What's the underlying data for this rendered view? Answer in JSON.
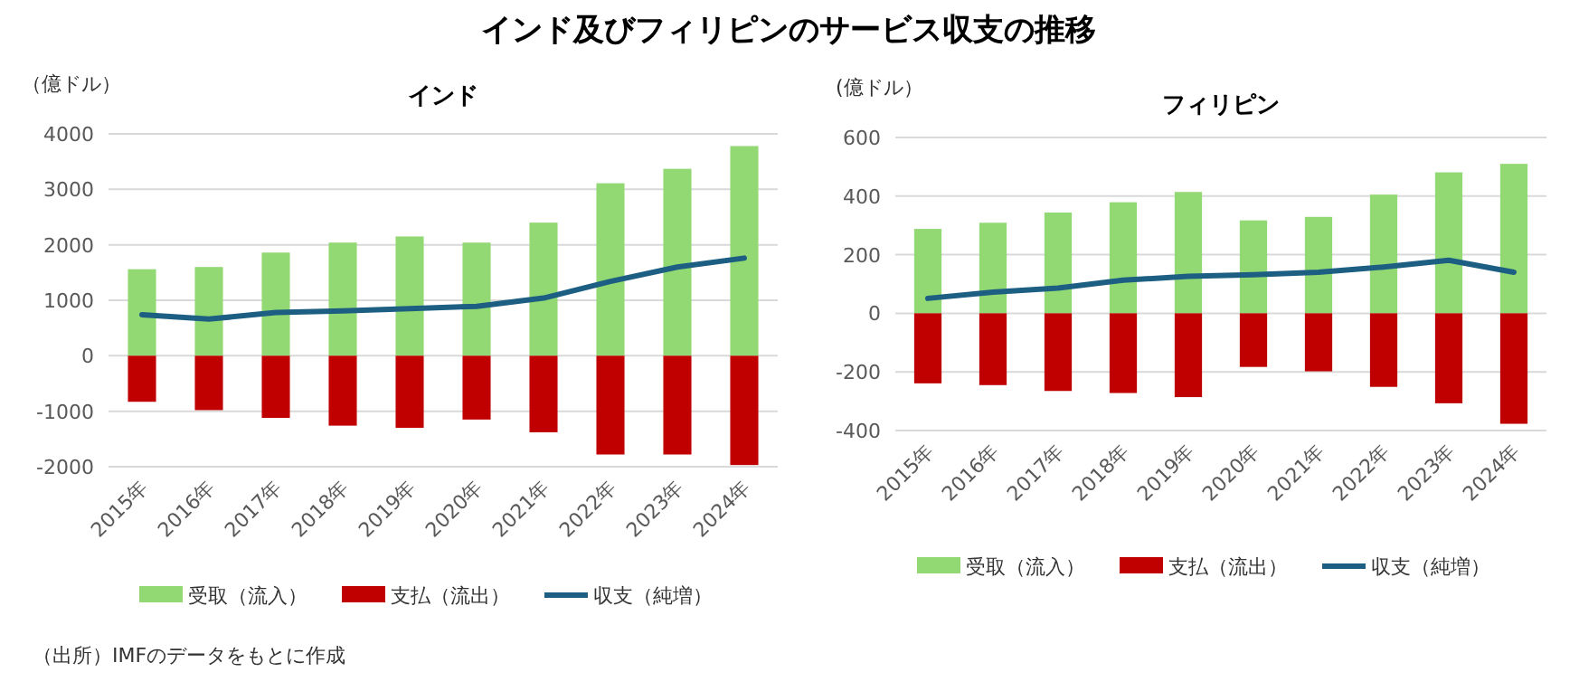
{
  "chart_data": [
    {
      "type": "bar",
      "title": "インド及びフィリピンのサービス収支の推移",
      "subtitle": "インド",
      "ylabel": "（億ドル）",
      "stacked": true,
      "grid": "y",
      "legend": "bottom",
      "categories": [
        "2015年",
        "2016年",
        "2017年",
        "2018年",
        "2019年",
        "2020年",
        "2021年",
        "2022年",
        "2023年",
        "2024年"
      ],
      "ylim": [
        -2000,
        4000
      ],
      "yticks": [
        -2000,
        -1000,
        0,
        1000,
        2000,
        3000,
        4000
      ],
      "series": [
        {
          "name": "受取（流入）",
          "color": "#92d873",
          "values": [
            1560,
            1600,
            1860,
            2040,
            2150,
            2040,
            2400,
            3110,
            3370,
            3780
          ]
        },
        {
          "name": "支払（流出）",
          "color": "#c00000",
          "values": [
            -830,
            -980,
            -1120,
            -1260,
            -1300,
            -1150,
            -1380,
            -1780,
            -1780,
            -1970
          ]
        },
        {
          "name": "収支（純増）",
          "type": "line",
          "color": "#1d5f82",
          "values": [
            740,
            660,
            780,
            810,
            850,
            890,
            1040,
            1340,
            1600,
            1760
          ]
        }
      ],
      "annotations": [
        "（出所）IMFのデータをもとに作成"
      ]
    },
    {
      "type": "bar",
      "title": "フィリピン",
      "ylabel": "(億ドル）",
      "stacked": true,
      "grid": "y",
      "legend": "bottom",
      "categories": [
        "2015年",
        "2016年",
        "2017年",
        "2018年",
        "2019年",
        "2020年",
        "2021年",
        "2022年",
        "2023年",
        "2024年"
      ],
      "ylim": [
        -400,
        600
      ],
      "yticks": [
        -400,
        -200,
        0,
        200,
        400,
        600
      ],
      "series": [
        {
          "name": "受取（流入）",
          "color": "#92d873",
          "values": [
            288,
            309,
            344,
            379,
            414,
            317,
            329,
            405,
            481,
            510
          ]
        },
        {
          "name": "支払（流出）",
          "color": "#c00000",
          "values": [
            -239,
            -245,
            -265,
            -272,
            -286,
            -183,
            -198,
            -251,
            -307,
            -377
          ]
        },
        {
          "name": "収支（純増）",
          "type": "line",
          "color": "#1d5f82",
          "values": [
            51,
            72,
            86,
            113,
            126,
            132,
            140,
            158,
            181,
            140
          ]
        }
      ]
    }
  ]
}
